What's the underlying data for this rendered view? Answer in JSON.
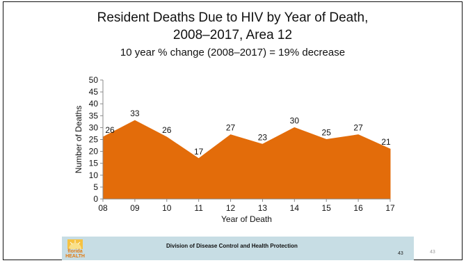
{
  "chart_data": {
    "type": "area",
    "title": "Resident Deaths Due to HIV by Year of Death,",
    "title_line2": "2008–2017, Area 12",
    "subtitle": "10 year % change (2008–2017) = 19% decrease",
    "xlabel": "Year of Death",
    "ylabel": "Number of Deaths",
    "categories": [
      "08",
      "09",
      "10",
      "11",
      "12",
      "13",
      "14",
      "15",
      "16",
      "17"
    ],
    "series": [
      {
        "values": [
          26,
          33,
          26,
          17,
          27,
          23,
          30,
          25,
          27,
          21
        ]
      }
    ],
    "data_labels": [
      "26",
      "33",
      "26",
      "17",
      "27",
      "23",
      "30",
      "25",
      "27",
      "21"
    ],
    "ylim": [
      0,
      50
    ],
    "yticks": [
      "0",
      "5",
      "10",
      "15",
      "20",
      "25",
      "30",
      "35",
      "40",
      "45",
      "50"
    ],
    "grid": false,
    "legend": "none",
    "fill_color": "#e36c0a",
    "line_color": "#e36c0a"
  },
  "footer": {
    "org": "Division of Disease Control and Health Protection",
    "page": "43",
    "slide_number": "43",
    "logo_line1": "florida",
    "logo_line2": "HEALTH"
  }
}
